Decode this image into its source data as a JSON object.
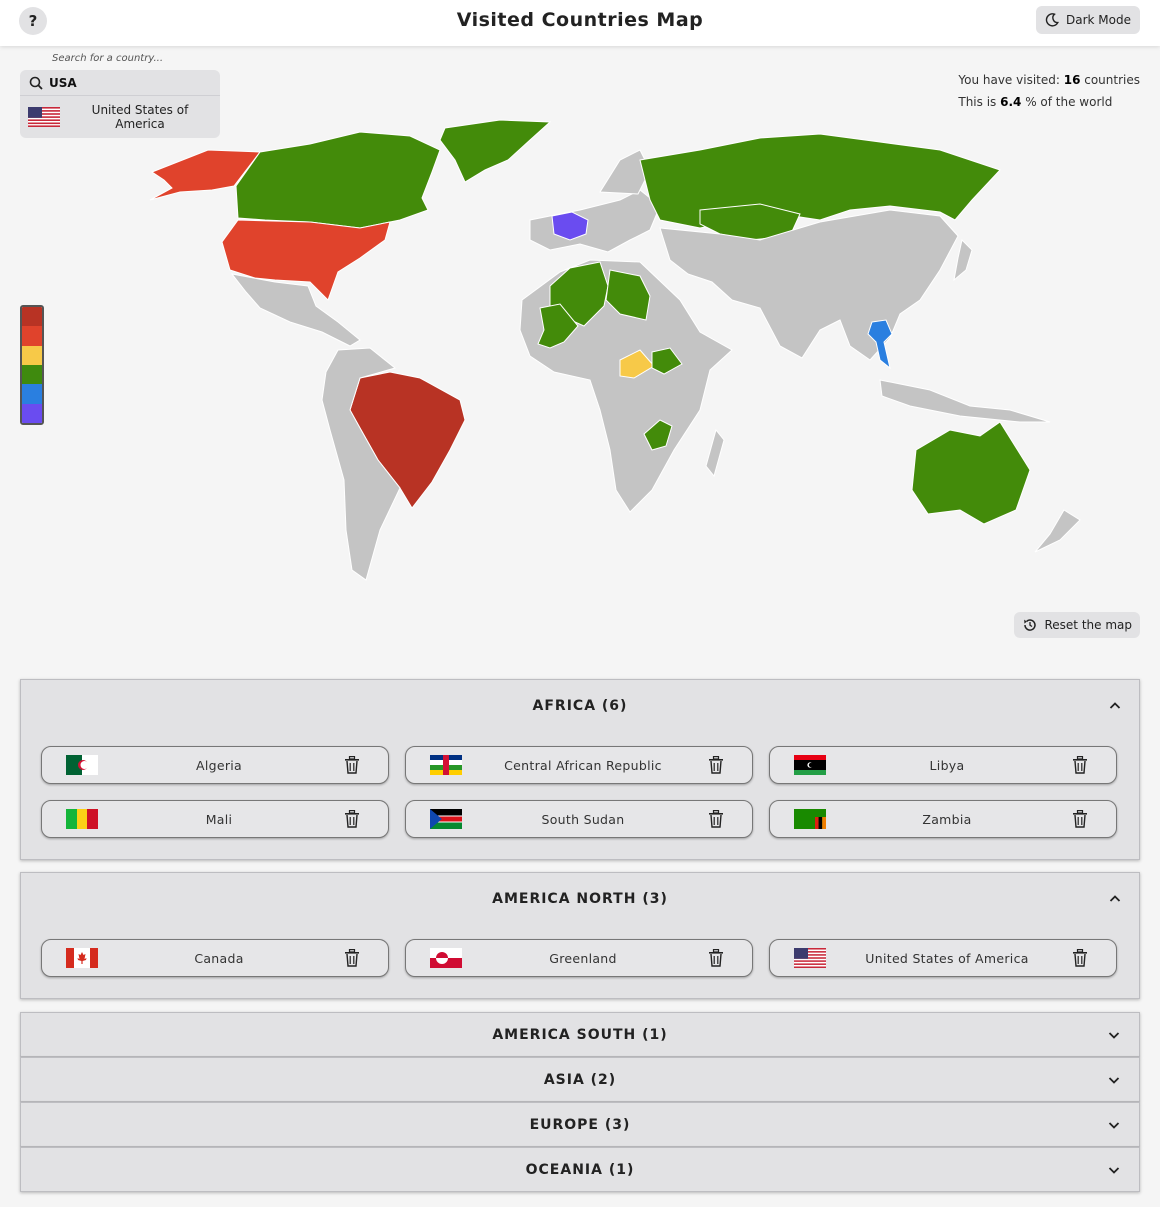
{
  "header": {
    "help_label": "?",
    "title": "Visited Countries Map",
    "dark_mode_label": "Dark Mode"
  },
  "search": {
    "label": "Search for a country...",
    "value": "USA",
    "suggestion": "United States of America"
  },
  "stats": {
    "line1_prefix": "You have visited: ",
    "visited_count": "16",
    "line1_suffix": " countries",
    "line2_prefix": "This is ",
    "percent": "6.4",
    "line2_suffix": " % of the world"
  },
  "legend_colors": [
    "#b83324",
    "#e0432c",
    "#f7c948",
    "#3f8a0e",
    "#2a7fe0",
    "#6a4cf0"
  ],
  "map_colors": {
    "land": "#c4c4c4",
    "red_dark": "#b83324",
    "red": "#e0432c",
    "yellow": "#f7c948",
    "green": "#438b0a",
    "blue": "#2a7fe0",
    "purple": "#6a4cf0"
  },
  "reset_label": "Reset the map",
  "sections": [
    {
      "title": "AFRICA (6)",
      "expanded": true,
      "countries": [
        {
          "name": "Algeria",
          "flag": "algeria-flag"
        },
        {
          "name": "Central African Republic",
          "flag": "car-flag"
        },
        {
          "name": "Libya",
          "flag": "libya-flag"
        },
        {
          "name": "Mali",
          "flag": "mali-flag"
        },
        {
          "name": "South Sudan",
          "flag": "south-sudan-flag"
        },
        {
          "name": "Zambia",
          "flag": "zambia-flag"
        }
      ]
    },
    {
      "title": "AMERICA NORTH (3)",
      "expanded": true,
      "countries": [
        {
          "name": "Canada",
          "flag": "canada-flag"
        },
        {
          "name": "Greenland",
          "flag": "greenland-flag"
        },
        {
          "name": "United States of America",
          "flag": "usa-flag"
        }
      ]
    },
    {
      "title": "AMERICA SOUTH (1)",
      "expanded": false
    },
    {
      "title": "ASIA (2)",
      "expanded": false
    },
    {
      "title": "EUROPE (3)",
      "expanded": false
    },
    {
      "title": "OCEANIA (1)",
      "expanded": false
    }
  ]
}
